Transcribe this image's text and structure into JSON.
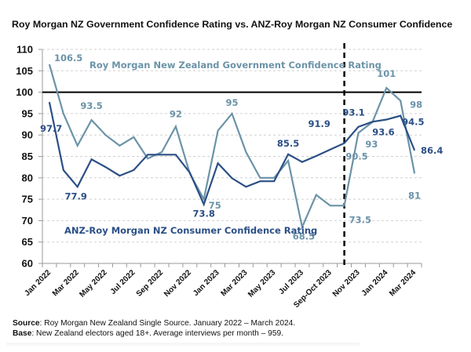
{
  "title": "Roy Morgan NZ Government Confidence Rating vs. ANZ-Roy Morgan NZ Consumer Confidence",
  "footer": {
    "source_label": "Source",
    "source_text": ": Roy Morgan New Zealand Single Source. January 2022 – March 2024.",
    "base_label": "Base",
    "base_text": ": New Zealand electors aged 18+. Average interviews per month – 959."
  },
  "chart_data": {
    "type": "line",
    "title": "Roy Morgan NZ Government Confidence Rating vs. ANZ-Roy Morgan NZ Consumer Confidence",
    "xlabel": "",
    "ylabel": "",
    "ylim": [
      60,
      110
    ],
    "yticks": [
      60,
      65,
      70,
      75,
      80,
      85,
      90,
      95,
      100,
      105,
      110
    ],
    "grid": true,
    "reference_line": {
      "value": 100,
      "style": "solid-black"
    },
    "divider_after_category_index": 21,
    "categories": [
      "Jan 2022",
      "Feb 2022",
      "Mar 2022",
      "Apr 2022",
      "May 2022",
      "Jun 2022",
      "Jul 2022",
      "Aug 2022",
      "Sep 2022",
      "Oct 2022",
      "Nov 2022",
      "Dec 2022",
      "Jan 2023",
      "Feb 2023",
      "Mar 2023",
      "Apr 2023",
      "May 2023",
      "Jun 2023",
      "Jul 2023",
      "Aug 2023",
      "Sep-Oct 2023",
      "Oct 2023",
      "Nov 2023",
      "Dec 2023",
      "Jan 2024",
      "Feb 2024",
      "Mar 2024"
    ],
    "tick_labels": [
      "Jan 2022",
      "",
      "Mar 2022",
      "",
      "May 2022",
      "",
      "Jul 2022",
      "",
      "Sep 2022",
      "",
      "Nov 2022",
      "",
      "Jan 2023",
      "",
      "Mar 2023",
      "",
      "May 2023",
      "",
      "Jul 2023",
      "",
      "Sep-Oct 2023",
      "",
      "Nov 2023",
      "",
      "Jan 2024",
      "",
      "Mar 2024"
    ],
    "series": [
      {
        "name": "Roy Morgan New Zealand Government Confidence Rating",
        "color": "#6b93a8",
        "values": [
          106.5,
          95,
          87.5,
          93.5,
          90,
          87.5,
          89.5,
          84.5,
          86,
          92,
          81,
          75,
          91,
          95,
          86,
          80,
          80,
          84,
          68.5,
          76,
          73.5,
          73.5,
          90.5,
          93,
          101,
          98,
          81
        ]
      },
      {
        "name": "ANZ-Roy Morgan NZ Consumer Confidence Rating",
        "color": "#2b4f86",
        "values": [
          97.7,
          81.8,
          77.9,
          84.3,
          82.5,
          80.5,
          81.8,
          85.4,
          85.4,
          85.4,
          81.2,
          73.8,
          83.4,
          79.9,
          77.9,
          79.2,
          79.2,
          85.5,
          83.7,
          85.1,
          86.6,
          88.1,
          91.9,
          93.1,
          93.6,
          94.5,
          86.4
        ]
      }
    ],
    "annotations": [
      {
        "series": 0,
        "text": "106.5",
        "index": 0
      },
      {
        "series": 0,
        "text": "93.5",
        "index": 3
      },
      {
        "series": 0,
        "text": "92",
        "index": 9
      },
      {
        "series": 0,
        "text": "75",
        "index": 11
      },
      {
        "series": 0,
        "text": "95",
        "index": 13
      },
      {
        "series": 0,
        "text": "68.5",
        "index": 18
      },
      {
        "series": 0,
        "text": "73.5",
        "index": 21
      },
      {
        "series": 0,
        "text": "90.5",
        "index": 22
      },
      {
        "series": 0,
        "text": "93",
        "index": 23
      },
      {
        "series": 0,
        "text": "101",
        "index": 24
      },
      {
        "series": 0,
        "text": "98",
        "index": 25
      },
      {
        "series": 0,
        "text": "81",
        "index": 26
      },
      {
        "series": 1,
        "text": "97.7",
        "index": 0
      },
      {
        "series": 1,
        "text": "77.9",
        "index": 2
      },
      {
        "series": 1,
        "text": "73.8",
        "index": 11
      },
      {
        "series": 1,
        "text": "85.5",
        "index": 17
      },
      {
        "series": 1,
        "text": "91.9",
        "index": 22
      },
      {
        "series": 1,
        "text": "93.1",
        "index": 23
      },
      {
        "series": 1,
        "text": "93.6",
        "index": 24
      },
      {
        "series": 1,
        "text": "94.5",
        "index": 25
      },
      {
        "series": 1,
        "text": "86.4",
        "index": 26
      }
    ],
    "legend": "inline-labels"
  }
}
